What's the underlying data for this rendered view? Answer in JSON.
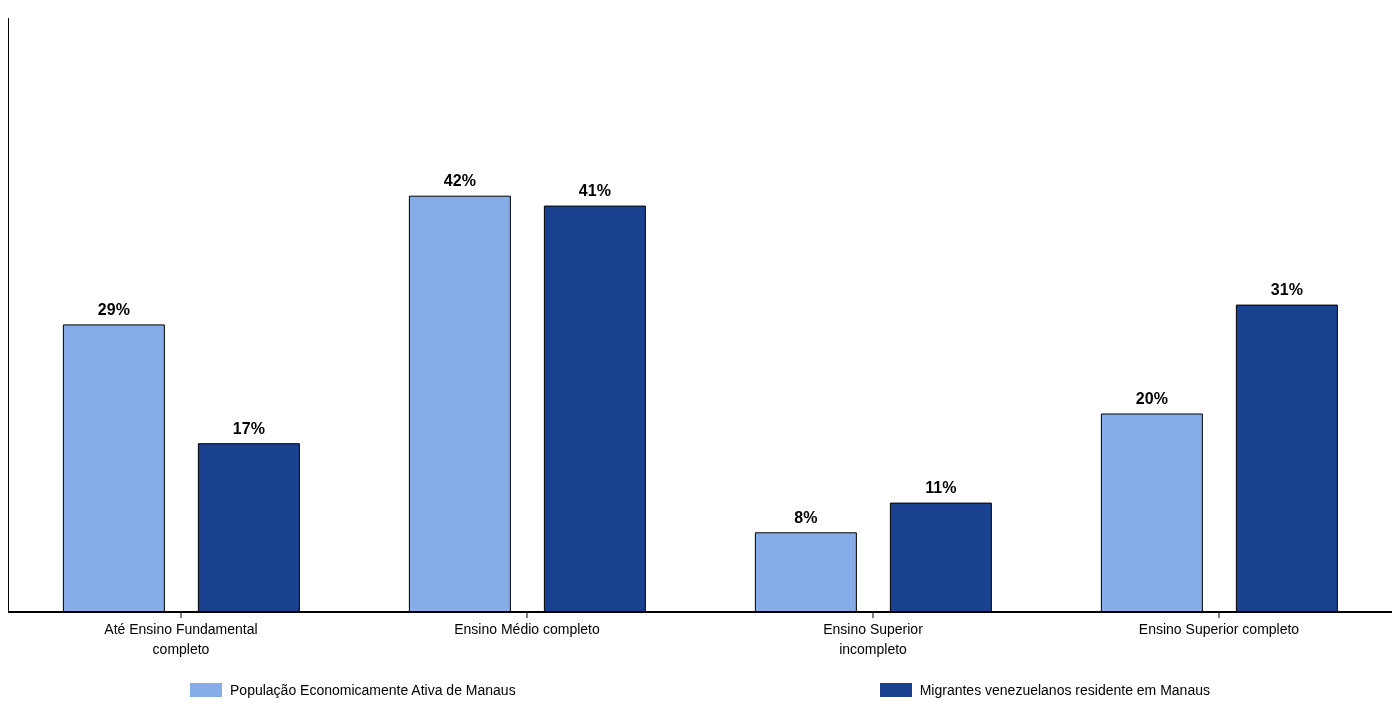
{
  "chart_data": {
    "type": "bar",
    "categories": [
      "Até Ensino Fundamental completo",
      "Ensino Médio completo",
      "Ensino Superior incompleto",
      "Ensino Superior completo"
    ],
    "series": [
      {
        "name": "População Economicamente Ativa de Manaus",
        "color": "#86ade8",
        "values": [
          29,
          42,
          8,
          20
        ],
        "value_labels": [
          "29%",
          "42%",
          "8%",
          "20%"
        ]
      },
      {
        "name": "Migrantes venezuelanos residente em Manaus",
        "color": "#1a4190",
        "values": [
          17,
          41,
          11,
          31
        ],
        "value_labels": [
          "17%",
          "41%",
          "11%",
          "31%"
        ]
      }
    ],
    "data_labels": true,
    "legend": "bottom"
  }
}
